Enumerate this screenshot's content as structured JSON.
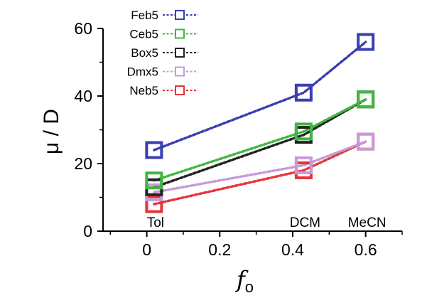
{
  "chart_data": {
    "type": "line",
    "xlabel": "f",
    "xlabel_sub": "o",
    "ylabel": "μ / D",
    "xlim": [
      -0.12,
      0.7
    ],
    "ylim": [
      0,
      60
    ],
    "xticks": [
      0,
      0.2,
      0.4,
      0.6
    ],
    "xtick_labels": [
      "0",
      "0.2",
      "0.4",
      "0.6"
    ],
    "yticks": [
      0,
      20,
      40,
      60
    ],
    "ytick_labels": [
      "0",
      "20",
      "40",
      "60"
    ],
    "x": [
      0.02,
      0.43,
      0.6
    ],
    "solvent_labels": [
      "Tol",
      "DCM",
      "MeCN"
    ],
    "legend_position": "top-left",
    "grid": false,
    "series": [
      {
        "name": "Feb5",
        "color": "#3b3fb0",
        "values": [
          24,
          41,
          56
        ]
      },
      {
        "name": "Ceb5",
        "color": "#3fb83f",
        "values": [
          15,
          29.5,
          39
        ]
      },
      {
        "name": "Box5",
        "color": "#222222",
        "values": [
          13,
          28.5,
          39
        ]
      },
      {
        "name": "Dmx5",
        "color": "#c79ad8",
        "values": [
          11.5,
          19.5,
          26.5
        ]
      },
      {
        "name": "Neb5",
        "color": "#e8343a",
        "values": [
          8,
          18,
          26.5
        ]
      }
    ]
  }
}
